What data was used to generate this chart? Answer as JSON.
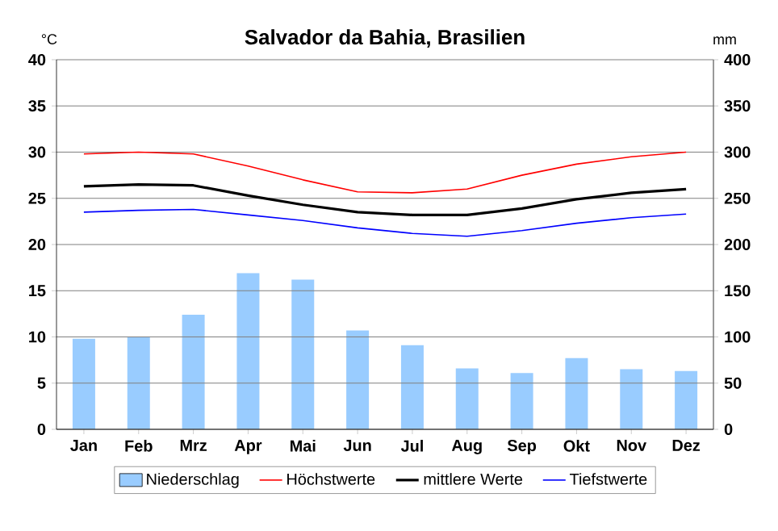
{
  "chart_data": {
    "type": "line",
    "title": "Salvador da Bahia, Brasilien",
    "ylabel": "°C",
    "y2label": "mm",
    "categories": [
      "Jan",
      "Feb",
      "Mrz",
      "Apr",
      "Mai",
      "Jun",
      "Jul",
      "Aug",
      "Sep",
      "Okt",
      "Nov",
      "Dez"
    ],
    "series": [
      {
        "name": "Niederschlag",
        "type": "bar",
        "axis": "y2",
        "color": "#99ccff",
        "values": [
          98,
          100,
          124,
          169,
          162,
          107,
          91,
          66,
          61,
          77,
          65,
          63
        ]
      },
      {
        "name": "Höchstwerte",
        "color": "#ff0000",
        "values": [
          29.8,
          30,
          29.8,
          28.5,
          27,
          25.7,
          25.6,
          26,
          27.5,
          28.7,
          29.5,
          30
        ]
      },
      {
        "name": "mittlere Werte",
        "color": "#000000",
        "values": [
          26.3,
          26.5,
          26.4,
          25.3,
          24.3,
          23.5,
          23.2,
          23.2,
          23.9,
          24.9,
          25.6,
          26
        ]
      },
      {
        "name": "Tiefstwerte",
        "color": "#0000ff",
        "values": [
          23.5,
          23.7,
          23.8,
          23.2,
          22.6,
          21.8,
          21.2,
          20.9,
          21.5,
          22.3,
          22.9,
          23.3
        ]
      }
    ],
    "ylim": [
      0,
      40
    ],
    "yticks": [
      0,
      5,
      10,
      15,
      20,
      25,
      30,
      35,
      40
    ],
    "y2lim": [
      0,
      400
    ],
    "y2ticks": [
      0,
      50,
      100,
      150,
      200,
      250,
      300,
      350,
      400
    ],
    "grid": "y",
    "legend": "bottom",
    "marker": "none",
    "line_style": "solid"
  }
}
